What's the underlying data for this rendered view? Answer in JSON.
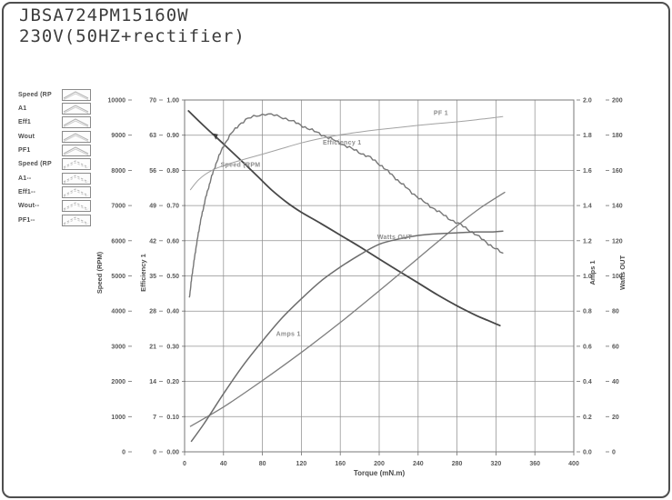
{
  "title_block": {
    "line1": "JBSA724PM15160W",
    "line2": "230V(50HZ+rectifier)"
  },
  "legend": {
    "items": [
      {
        "label": "Speed (RP",
        "dashed": false
      },
      {
        "label": "A1",
        "dashed": false
      },
      {
        "label": "Eff1",
        "dashed": false
      },
      {
        "label": "Wout",
        "dashed": false
      },
      {
        "label": "PF1",
        "dashed": false
      },
      {
        "label": "Speed (RP",
        "dashed": true
      },
      {
        "label": "A1--",
        "dashed": true
      },
      {
        "label": "Eff1--",
        "dashed": true
      },
      {
        "label": "Wout--",
        "dashed": true
      },
      {
        "label": "PF1--",
        "dashed": true
      }
    ]
  },
  "colors": {
    "frame": "#4e4e4e",
    "grid": "#919191",
    "tick_text": "#585858",
    "swatch_line": "#b5b5b5"
  },
  "chart_data": {
    "type": "line",
    "title": "",
    "xlabel": "Torque (mN.m)",
    "x_range": [
      0,
      400
    ],
    "x_tick_step": 40,
    "grid": true,
    "legend_position": "outside-left",
    "axes": [
      {
        "id": "speed",
        "title": "Speed (RPM)",
        "side": "left",
        "range": [
          0,
          10000
        ],
        "tick_step": 1000,
        "format": "int"
      },
      {
        "id": "aux",
        "title": "",
        "side": "left",
        "range": [
          0,
          70
        ],
        "tick_step": 7,
        "format": "int"
      },
      {
        "id": "eff",
        "title": "Efficiency 1",
        "side": "left",
        "range": [
          0,
          1.0
        ],
        "tick_step": 0.1,
        "format": "2dp"
      },
      {
        "id": "amps",
        "title": "Amps 1",
        "side": "right",
        "range": [
          0,
          2.0
        ],
        "tick_step": 0.2,
        "format": "1dp"
      },
      {
        "id": "watts",
        "title": "Watts OUT",
        "side": "right",
        "range": [
          0,
          200
        ],
        "tick_step": 20,
        "format": "int"
      }
    ],
    "series": [
      {
        "name": "Speed (RPM)",
        "axis": "speed",
        "color": "#474747",
        "width": 1.8,
        "noisy": false,
        "points": [
          [
            4,
            9690
          ],
          [
            20,
            9260
          ],
          [
            40,
            8750
          ],
          [
            60,
            8230
          ],
          [
            75,
            7830
          ],
          [
            90,
            7430
          ],
          [
            105,
            7090
          ],
          [
            120,
            6810
          ],
          [
            140,
            6490
          ],
          [
            160,
            6160
          ],
          [
            180,
            5830
          ],
          [
            200,
            5480
          ],
          [
            220,
            5140
          ],
          [
            240,
            4800
          ],
          [
            260,
            4460
          ],
          [
            280,
            4150
          ],
          [
            300,
            3870
          ],
          [
            312,
            3730
          ],
          [
            324,
            3590
          ]
        ]
      },
      {
        "name": "Efficiency 1",
        "axis": "eff",
        "color": "#767676",
        "width": 1.4,
        "noisy": true,
        "points": [
          [
            5,
            0.44
          ],
          [
            8,
            0.51
          ],
          [
            12,
            0.585
          ],
          [
            16,
            0.65
          ],
          [
            21,
            0.715
          ],
          [
            27,
            0.775
          ],
          [
            33,
            0.825
          ],
          [
            40,
            0.87
          ],
          [
            48,
            0.905
          ],
          [
            56,
            0.93
          ],
          [
            65,
            0.947
          ],
          [
            74,
            0.956
          ],
          [
            83,
            0.96
          ],
          [
            92,
            0.957
          ],
          [
            101,
            0.95
          ],
          [
            110,
            0.941
          ],
          [
            119,
            0.929
          ],
          [
            131,
            0.914
          ],
          [
            143,
            0.899
          ],
          [
            155,
            0.884
          ],
          [
            167,
            0.868
          ],
          [
            179,
            0.852
          ],
          [
            191,
            0.836
          ],
          [
            203,
            0.812
          ],
          [
            215,
            0.782
          ],
          [
            229,
            0.748
          ],
          [
            243,
            0.716
          ],
          [
            257,
            0.69
          ],
          [
            271,
            0.664
          ],
          [
            284,
            0.645
          ],
          [
            298,
            0.62
          ],
          [
            310,
            0.596
          ],
          [
            319,
            0.578
          ],
          [
            327,
            0.564
          ]
        ]
      },
      {
        "name": "PF 1",
        "axis": "eff",
        "color": "#a2a2a2",
        "width": 1.0,
        "noisy": false,
        "points": [
          [
            6,
            0.745
          ],
          [
            15,
            0.775
          ],
          [
            28,
            0.8
          ],
          [
            45,
            0.818
          ],
          [
            62,
            0.832
          ],
          [
            80,
            0.846
          ],
          [
            100,
            0.862
          ],
          [
            120,
            0.878
          ],
          [
            140,
            0.891
          ],
          [
            160,
            0.901
          ],
          [
            180,
            0.909
          ],
          [
            200,
            0.916
          ],
          [
            220,
            0.922
          ],
          [
            240,
            0.928
          ],
          [
            260,
            0.933
          ],
          [
            280,
            0.938
          ],
          [
            300,
            0.944
          ],
          [
            313,
            0.948
          ],
          [
            327,
            0.953
          ]
        ]
      },
      {
        "name": "Amps 1",
        "axis": "amps",
        "color": "#7e7e7e",
        "width": 1.3,
        "noisy": false,
        "points": [
          [
            6,
            0.145
          ],
          [
            40,
            0.255
          ],
          [
            80,
            0.405
          ],
          [
            120,
            0.565
          ],
          [
            160,
            0.735
          ],
          [
            200,
            0.915
          ],
          [
            240,
            1.1
          ],
          [
            280,
            1.285
          ],
          [
            305,
            1.39
          ],
          [
            329,
            1.475
          ]
        ]
      },
      {
        "name": "Watts OUT",
        "axis": "watts",
        "color": "#6d6d6d",
        "width": 1.5,
        "noisy": false,
        "points": [
          [
            7,
            6
          ],
          [
            20,
            16
          ],
          [
            40,
            33
          ],
          [
            60,
            49
          ],
          [
            80,
            63
          ],
          [
            100,
            76
          ],
          [
            120,
            87
          ],
          [
            140,
            97
          ],
          [
            160,
            105
          ],
          [
            180,
            112
          ],
          [
            200,
            118
          ],
          [
            220,
            121
          ],
          [
            240,
            123
          ],
          [
            260,
            124
          ],
          [
            280,
            124.5
          ],
          [
            300,
            125
          ],
          [
            315,
            125
          ],
          [
            327,
            125.5
          ]
        ]
      }
    ],
    "annotations": [
      {
        "text": "PF 1",
        "axis": "eff",
        "t": 256,
        "v": 0.957
      },
      {
        "text": "Efficiency 1",
        "axis": "eff",
        "t": 142,
        "v": 0.873
      },
      {
        "text": "Speed (RPM",
        "axis": "speed",
        "t": 37,
        "v": 8100
      },
      {
        "text": "Watts OUT",
        "axis": "watts",
        "t": 198,
        "v": 121
      },
      {
        "text": "Amps 1",
        "axis": "amps",
        "t": 94,
        "v": 0.66
      }
    ],
    "marker": {
      "axis": "speed",
      "t": 32,
      "v": 8870
    }
  }
}
